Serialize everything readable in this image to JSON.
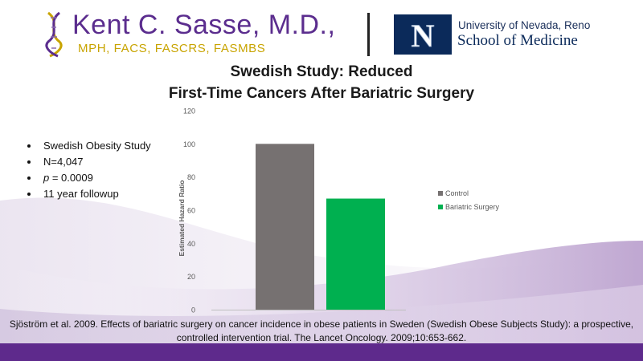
{
  "header": {
    "name": "Kent C. Sasse, M.D.,",
    "credentials": "MPH, FACS, FASCRS, FASMBS",
    "unr_logo_letter": "N",
    "unr_university": "University of Nevada, Reno",
    "unr_school": "School of Medicine"
  },
  "title": {
    "line1": "Swedish Study: Reduced",
    "line2": "First-Time Cancers After Bariatric Surgery"
  },
  "bullets": [
    {
      "text": "Swedish Obesity Study"
    },
    {
      "text": "N=4,047"
    },
    {
      "italic": "p",
      "text": " = 0.0009"
    },
    {
      "text": "11 year followup"
    }
  ],
  "citation": "Sjöström et al. 2009. Effects of bariatric surgery on cancer incidence in obese patients in Sweden (Swedish Obese Subjects Study): a prospective, controlled intervention trial. The Lancet Oncology. 2009;10:653-662.",
  "colors": {
    "brand_purple": "#5b2d8e",
    "brand_gold": "#c8a400",
    "unr_navy": "#0b2a5a",
    "footer_purple": "#5e2a8c"
  },
  "icons": {
    "brand_logo": "dna-helix-icon",
    "unr_logo": "nevada-n-logo"
  },
  "chart_data": {
    "type": "bar",
    "categories": [
      "Control",
      "Bariatric Surgery"
    ],
    "series": [
      {
        "name": "Control",
        "values": [
          100,
          null
        ],
        "color": "#767171"
      },
      {
        "name": "Bariatric Surgery",
        "values": [
          null,
          67
        ],
        "color": "#00b050"
      }
    ],
    "ylabel": "Estimated Hazard  Ratio",
    "ylim": [
      0,
      120
    ],
    "yticks": [
      0,
      20,
      40,
      60,
      80,
      100,
      120
    ],
    "grid": false,
    "legend_position": "right"
  }
}
